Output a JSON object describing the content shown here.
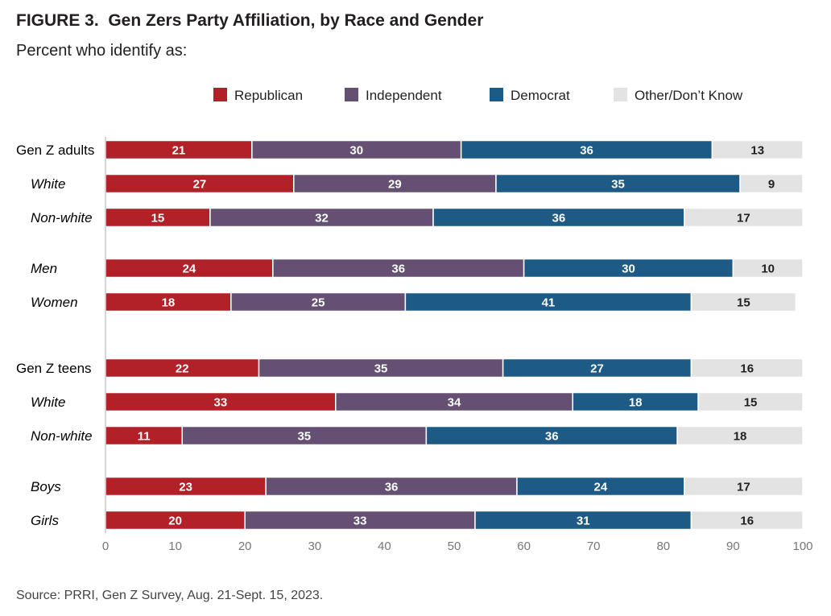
{
  "title": "FIGURE 3.  Gen Zers Party Affiliation, by Race and Gender",
  "subtitle": "Percent who identify as:",
  "source": "Source: PRRI, Gen Z Survey, Aug. 21-Sept. 15, 2023.",
  "colors": {
    "Republican": "#b22028",
    "Independent": "#654f72",
    "Democrat": "#1d5a86",
    "Other/Don’t Know": "#e3e3e3",
    "axis": "#c8c8c8",
    "tick_text": "#777777"
  },
  "chart_data": {
    "type": "bar",
    "orientation": "horizontal",
    "stacked": true,
    "title": "Gen Zers Party Affiliation, by Race and Gender",
    "xlabel": "",
    "ylabel": "",
    "xlim": [
      0,
      100
    ],
    "xticks": [
      0,
      10,
      20,
      30,
      40,
      50,
      60,
      70,
      80,
      90,
      100
    ],
    "legend_position": "top",
    "grid": false,
    "categories": [
      {
        "label": "Gen Z adults",
        "italic": false
      },
      {
        "label": "White",
        "italic": true
      },
      {
        "label": "Non-white",
        "italic": true
      },
      {
        "label": "Men",
        "italic": true
      },
      {
        "label": "Women",
        "italic": true
      },
      {
        "label": "Gen Z teens",
        "italic": false
      },
      {
        "label": "White",
        "italic": true
      },
      {
        "label": "Non-white",
        "italic": true
      },
      {
        "label": "Boys",
        "italic": true
      },
      {
        "label": "Girls",
        "italic": true
      }
    ],
    "series": [
      {
        "name": "Republican",
        "values": [
          21,
          27,
          15,
          24,
          18,
          22,
          33,
          11,
          23,
          20
        ]
      },
      {
        "name": "Independent",
        "values": [
          30,
          29,
          32,
          36,
          25,
          35,
          34,
          35,
          36,
          33
        ]
      },
      {
        "name": "Democrat",
        "values": [
          36,
          35,
          36,
          30,
          41,
          27,
          18,
          36,
          24,
          31
        ]
      },
      {
        "name": "Other/Don’t Know",
        "values": [
          13,
          9,
          17,
          10,
          15,
          16,
          15,
          18,
          17,
          16
        ]
      }
    ]
  }
}
